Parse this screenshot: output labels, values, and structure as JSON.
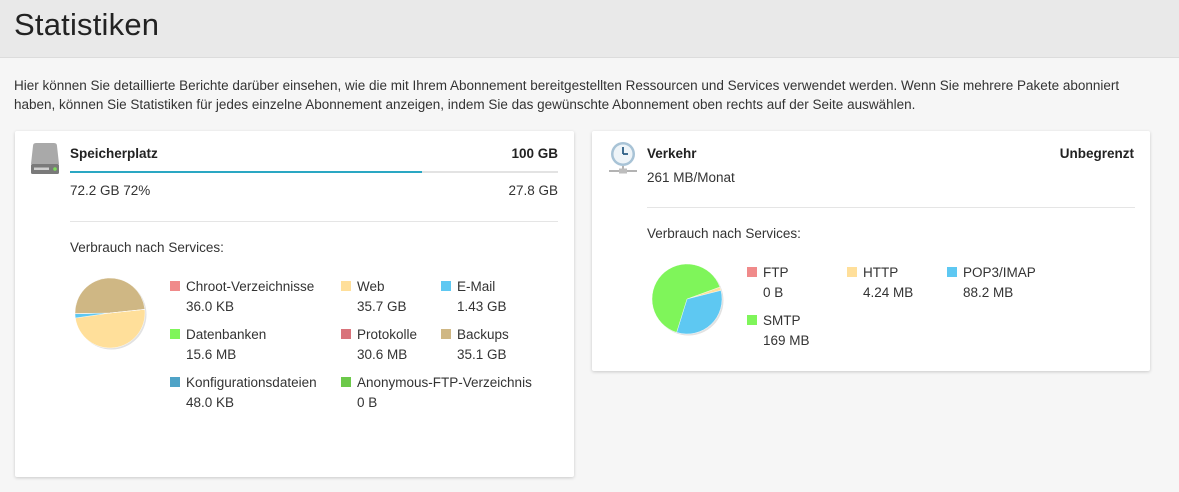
{
  "page": {
    "title": "Statistiken",
    "intro": "Hier können Sie detaillierte Berichte darüber einsehen, wie die mit Ihrem Abonnement bereitgestellten Ressourcen und Services verwendet werden. Wenn Sie mehrere Pakete abonniert haben, können Sie Statistiken für jedes einzelne Abonnement anzeigen, indem Sie das gewünschte Abonnement oben rechts auf der Seite auswählen."
  },
  "storage": {
    "title": "Speicherplatz",
    "limit": "100 GB",
    "used": "72.2 GB 72%",
    "free": "27.8 GB",
    "usage_fraction": 0.722,
    "by_services_label": "Verbrauch nach Services:",
    "icon": "hard-drive-icon",
    "legend": [
      {
        "label": "Chroot-Verzeichnisse",
        "value": "36.0 KB",
        "color": "#f08a8a"
      },
      {
        "label": "Web",
        "value": "35.7 GB",
        "color": "#ffdf9a"
      },
      {
        "label": "E-Mail",
        "value": "1.43 GB",
        "color": "#5ec8f2"
      },
      {
        "label": "Datenbanken",
        "value": "15.6 MB",
        "color": "#7ff55a"
      },
      {
        "label": "Protokolle",
        "value": "30.6 MB",
        "color": "#d9737b"
      },
      {
        "label": "Backups",
        "value": "35.1 GB",
        "color": "#cfb784"
      },
      {
        "label": "Konfigurationsdateien",
        "value": "48.0 KB",
        "color": "#4fa3c7"
      },
      {
        "label": "Anonymous-FTP-Verzeichnis",
        "value": "0 B",
        "color": "#6cc94a"
      }
    ]
  },
  "traffic": {
    "title": "Verkehr",
    "limit": "Unbegrenzt",
    "monthly": "261 MB/Monat",
    "by_services_label": "Verbrauch nach Services:",
    "icon": "network-clock-icon",
    "legend": [
      {
        "label": "FTP",
        "value": "0 B",
        "color": "#f08a8a"
      },
      {
        "label": "HTTP",
        "value": "4.24 MB",
        "color": "#ffdf9a"
      },
      {
        "label": "POP3/IMAP",
        "value": "88.2 MB",
        "color": "#5ec8f2"
      },
      {
        "label": "SMTP",
        "value": "169 MB",
        "color": "#7ff55a"
      }
    ]
  },
  "chart_data": [
    {
      "type": "pie",
      "categories": [
        "Chroot-Verzeichnisse",
        "Web",
        "E-Mail",
        "Datenbanken",
        "Protokolle",
        "Backups",
        "Konfigurationsdateien",
        "Anonymous-FTP-Verzeichnis"
      ],
      "values": [
        3.6e-05,
        35.7,
        1.43,
        0.0156,
        0.0306,
        35.1,
        4.8e-05,
        0
      ],
      "unit": "GB",
      "colors": [
        "#f08a8a",
        "#ffdf9a",
        "#5ec8f2",
        "#7ff55a",
        "#d9737b",
        "#cfb784",
        "#4fa3c7",
        "#6cc94a"
      ]
    },
    {
      "type": "pie",
      "categories": [
        "FTP",
        "HTTP",
        "POP3/IMAP",
        "SMTP"
      ],
      "values": [
        0,
        4.24,
        88.2,
        169
      ],
      "unit": "MB",
      "colors": [
        "#f08a8a",
        "#ffdf9a",
        "#5ec8f2",
        "#7ff55a"
      ]
    }
  ]
}
